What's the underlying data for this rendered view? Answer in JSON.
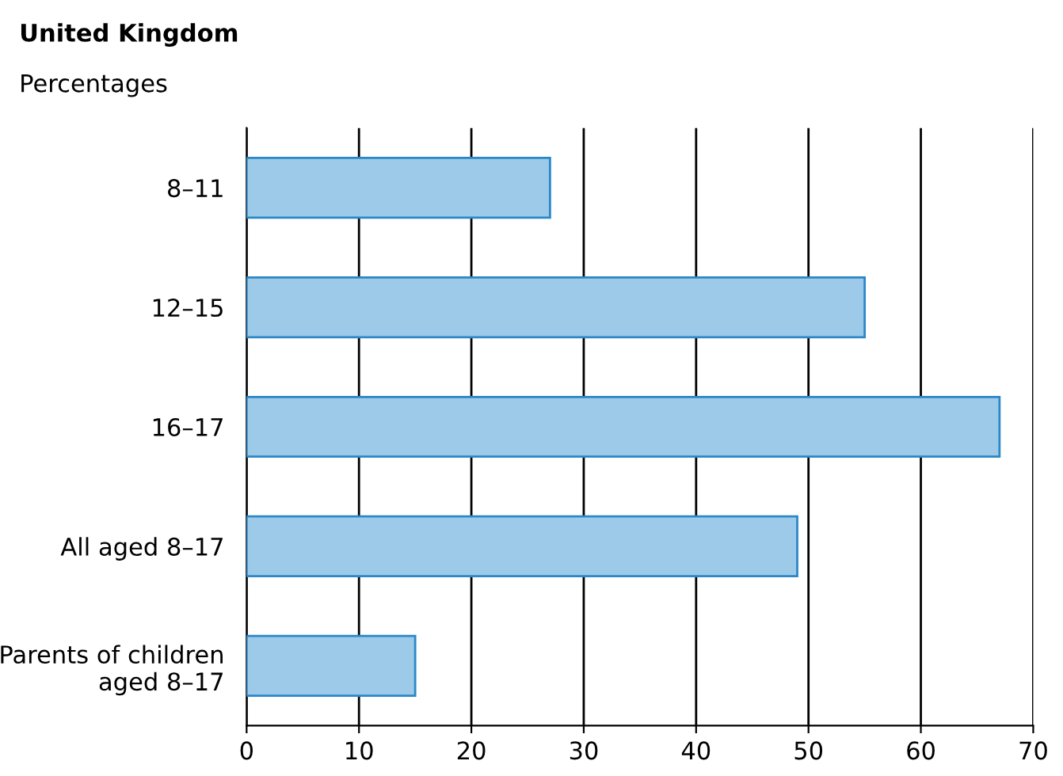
{
  "chart_data": {
    "type": "bar",
    "orientation": "horizontal",
    "title": "United Kingdom",
    "subtitle": "Percentages",
    "categories": [
      "8–11",
      "12–15",
      "16–17",
      "All aged 8–17",
      "Parents of children\naged 8–17"
    ],
    "values": [
      27,
      55,
      67,
      49,
      15
    ],
    "color": "#9dcae9",
    "xlim": [
      0,
      70
    ],
    "xticks": [
      0,
      10,
      20,
      30,
      40,
      50,
      60,
      70
    ],
    "grid": "x"
  }
}
